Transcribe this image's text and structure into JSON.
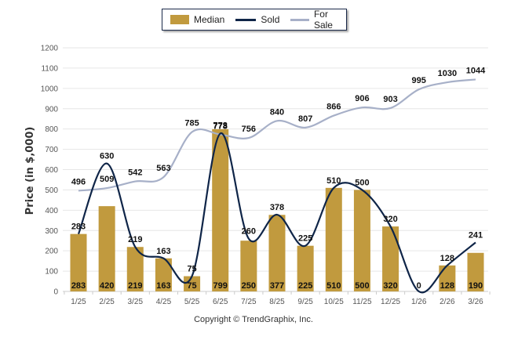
{
  "legend": {
    "median_label": "Median",
    "sold_label": "Sold",
    "forsale_label": "For Sale"
  },
  "copyright": "Copyright © TrendGraphix, Inc.",
  "colors": {
    "median": "#c19a3e",
    "sold": "#0f2548",
    "forsale": "#a7b0c8",
    "grid": "#e6e6e6"
  },
  "chart_data": {
    "type": "bar",
    "title": "",
    "xlabel": "",
    "ylabel": "Price (in $,000)",
    "ylim": [
      0,
      1200
    ],
    "yticks": [
      0,
      100,
      200,
      300,
      400,
      500,
      600,
      700,
      800,
      900,
      1000,
      1100,
      1200
    ],
    "grid": true,
    "legend_position": "top-center",
    "categories": [
      "1/25",
      "2/25",
      "3/25",
      "4/25",
      "5/25",
      "6/25",
      "7/25",
      "8/25",
      "9/25",
      "10/25",
      "11/25",
      "12/25",
      "1/26",
      "2/26",
      "3/26"
    ],
    "series": [
      {
        "name": "Median",
        "type": "bar",
        "values": [
          283,
          420,
          219,
          163,
          75,
          799,
          250,
          377,
          225,
          510,
          500,
          320,
          0,
          128,
          190
        ]
      },
      {
        "name": "Sold",
        "type": "line",
        "values": [
          283,
          630,
          219,
          163,
          75,
          778,
          260,
          378,
          225,
          510,
          500,
          320,
          0,
          128,
          241
        ]
      },
      {
        "name": "For Sale",
        "type": "line",
        "values": [
          496,
          509,
          542,
          563,
          785,
          773,
          756,
          840,
          807,
          866,
          906,
          903,
          995,
          1030,
          1044
        ]
      }
    ]
  }
}
